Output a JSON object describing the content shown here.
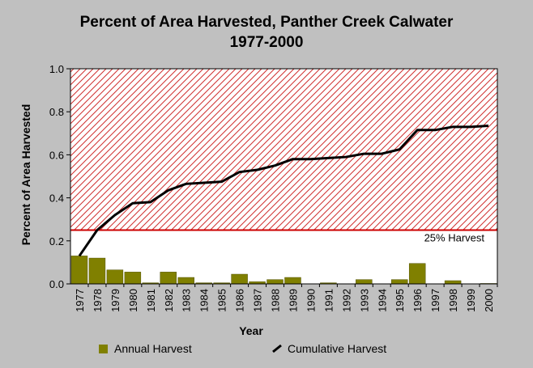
{
  "chart_data": {
    "type": "bar+line",
    "title": "Percent of Area Harvested, Panther Creek Calwater",
    "subtitle": "1977-2000",
    "xlabel": "Year",
    "ylabel": "Percent of Area Harvested",
    "ylim": [
      0,
      1.0
    ],
    "yticks": [
      "0.0",
      "0.2",
      "0.4",
      "0.6",
      "0.8",
      "1.0"
    ],
    "categories": [
      "1977",
      "1978",
      "1979",
      "1980",
      "1981",
      "1982",
      "1983",
      "1984",
      "1985",
      "1986",
      "1987",
      "1988",
      "1989",
      "1990",
      "1991",
      "1992",
      "1993",
      "1994",
      "1995",
      "1996",
      "1997",
      "1998",
      "1999",
      "2000"
    ],
    "series": [
      {
        "name": "Annual Harvest",
        "type": "bar",
        "color": "#808000",
        "values": [
          0.13,
          0.12,
          0.065,
          0.055,
          0.005,
          0.055,
          0.03,
          0.005,
          0.005,
          0.045,
          0.01,
          0.02,
          0.03,
          0.0,
          0.005,
          0.0,
          0.02,
          0.0,
          0.02,
          0.095,
          0.0,
          0.015,
          0.0,
          0.002
        ]
      },
      {
        "name": "Cumulative Harvest",
        "type": "line",
        "color": "#000000",
        "values": [
          0.13,
          0.25,
          0.32,
          0.375,
          0.38,
          0.435,
          0.465,
          0.47,
          0.475,
          0.52,
          0.53,
          0.55,
          0.58,
          0.58,
          0.585,
          0.59,
          0.605,
          0.605,
          0.625,
          0.715,
          0.715,
          0.73,
          0.73,
          0.735
        ]
      }
    ],
    "threshold": {
      "value": 0.25,
      "label": "25% Harvest",
      "color": "#cc0000"
    },
    "grid": false,
    "legend_position": "bottom"
  }
}
